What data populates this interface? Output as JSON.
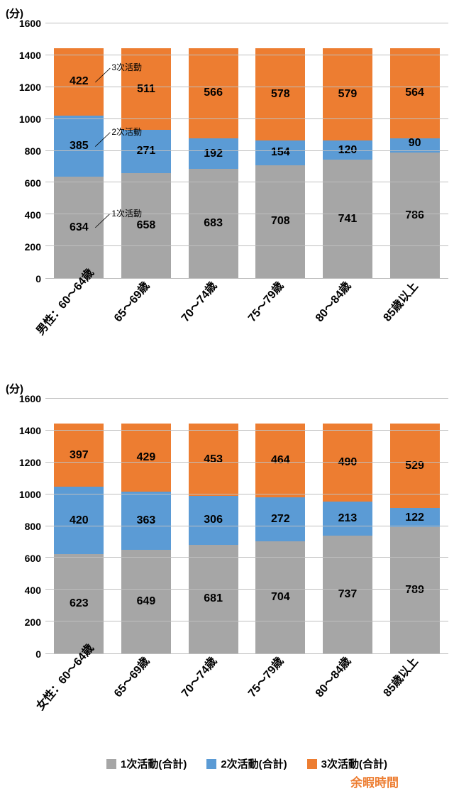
{
  "colors": {
    "primary": "#a6a6a6",
    "secondary": "#5b9bd5",
    "tertiary": "#ed7d31",
    "grid": "#bfbfbf"
  },
  "y_axis": {
    "title": "(分)",
    "min": 0,
    "max": 1600,
    "step": 200,
    "ticks": [
      "0",
      "200",
      "400",
      "600",
      "800",
      "1000",
      "1200",
      "1400",
      "1600"
    ]
  },
  "chart_male": {
    "categories": [
      "男性：60～64歳",
      "65～69歳",
      "70～74歳",
      "75～79歳",
      "80～84歳",
      "85歳以上"
    ],
    "primary": [
      634,
      658,
      683,
      708,
      741,
      786
    ],
    "secondary": [
      385,
      271,
      192,
      154,
      120,
      90
    ],
    "tertiary": [
      422,
      511,
      566,
      578,
      579,
      564
    ],
    "callouts": {
      "tertiary": "3次活動",
      "secondary": "2次活動",
      "primary": "1次活動"
    }
  },
  "chart_female": {
    "categories": [
      "女性：60～64歳",
      "65～69歳",
      "70～74歳",
      "75～79歳",
      "80～84歳",
      "85歳以上"
    ],
    "primary": [
      623,
      649,
      681,
      704,
      737,
      789
    ],
    "secondary": [
      420,
      363,
      306,
      272,
      213,
      122
    ],
    "tertiary": [
      397,
      429,
      453,
      464,
      490,
      529
    ]
  },
  "legend": {
    "primary": "1次活動(合計)",
    "secondary": "2次活動(合計)",
    "tertiary": "3次活動(合計)",
    "leisure": "余暇時間"
  }
}
